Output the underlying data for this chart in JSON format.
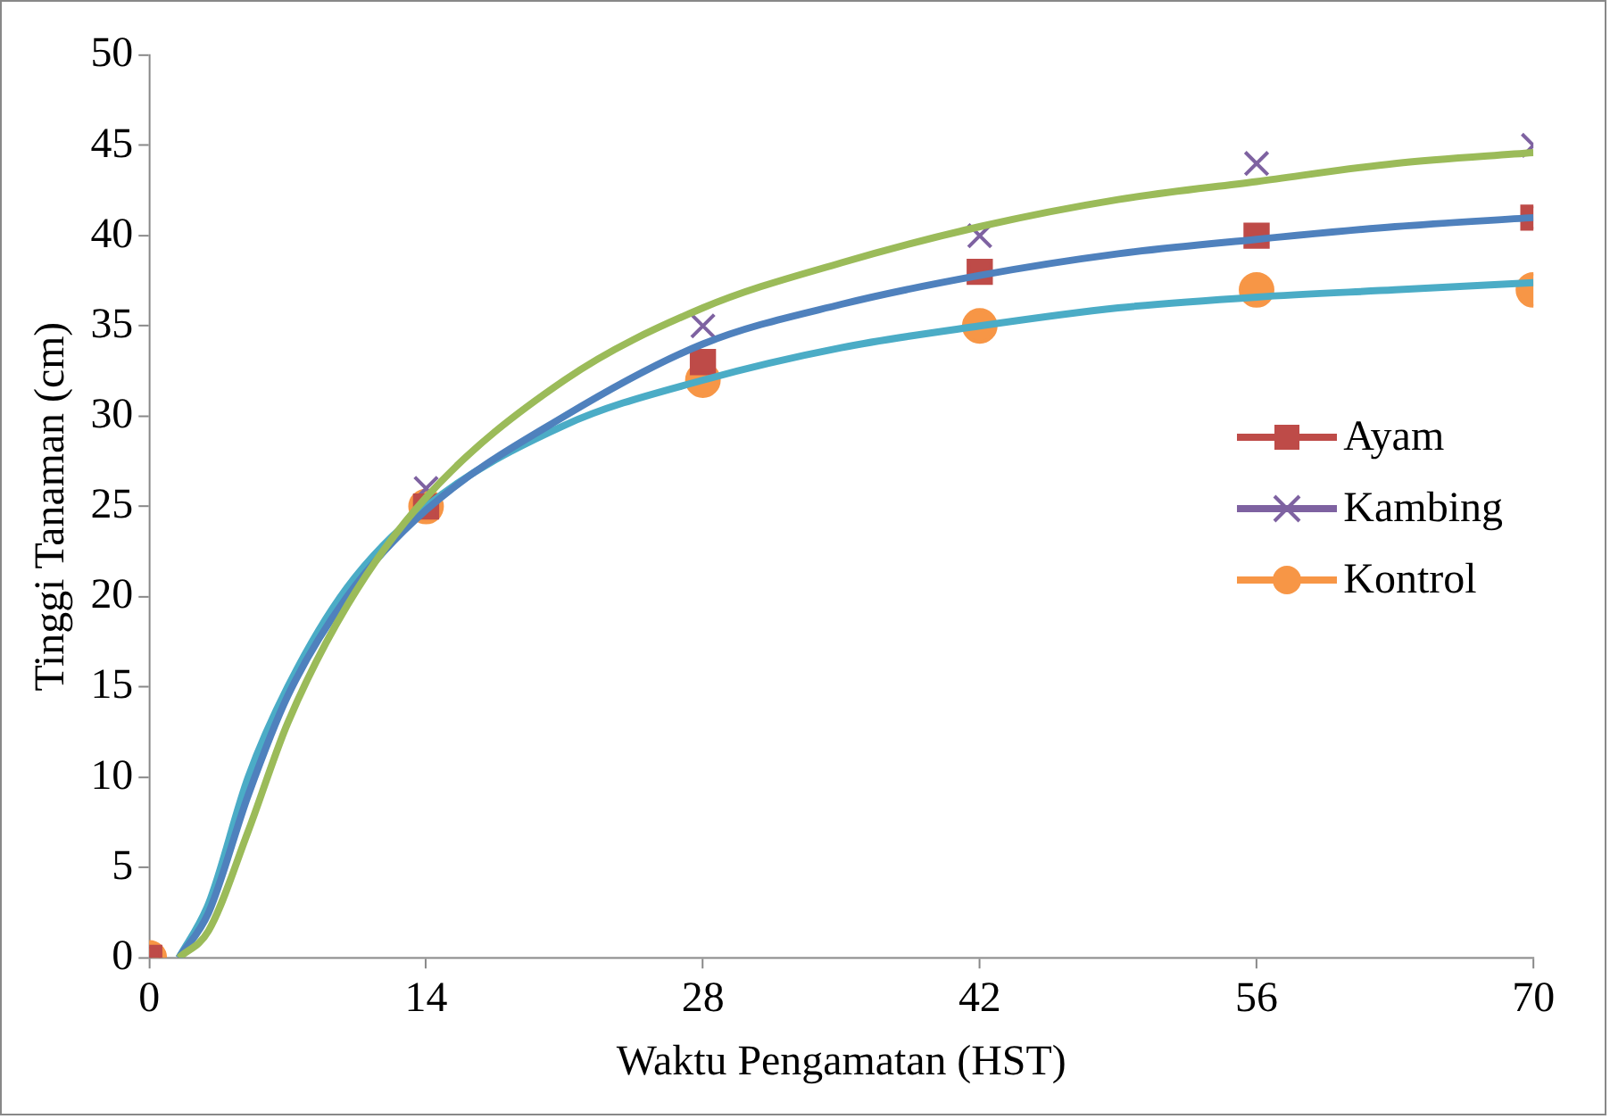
{
  "chart_data": {
    "type": "scatter",
    "xlabel": "Waktu Pengamatan (HST)",
    "ylabel": "Tinggi Tanaman (cm)",
    "x": [
      0,
      14,
      28,
      42,
      56,
      70
    ],
    "xlim": [
      0,
      70
    ],
    "xticks": [
      0,
      14,
      28,
      42,
      56,
      70
    ],
    "ylim": [
      0,
      50
    ],
    "yticks": [
      0,
      5,
      10,
      15,
      20,
      25,
      30,
      35,
      40,
      45,
      50
    ],
    "grid": false,
    "legend": "right",
    "series": [
      {
        "name": "Ayam",
        "type": "scatter",
        "marker": "square",
        "color": "#be4b48",
        "values": [
          0,
          25,
          33,
          38,
          40,
          41
        ]
      },
      {
        "name": "Kambing",
        "type": "scatter",
        "marker": "cross",
        "color": "#7e62a1",
        "values": [
          0,
          26,
          35,
          40,
          44,
          45
        ]
      },
      {
        "name": "Kontrol",
        "type": "scatter",
        "marker": "circle",
        "color": "#f79646",
        "values": [
          0,
          25,
          32,
          35,
          37,
          37
        ]
      },
      {
        "type": "line",
        "marker": "none",
        "color": "#9bbb59",
        "x": [
          1.5,
          3,
          5,
          7,
          10,
          14,
          21,
          28,
          35,
          42,
          49,
          56,
          63,
          70
        ],
        "values": [
          0,
          1.5,
          7,
          13,
          19.5,
          25.5,
          32,
          36,
          38.5,
          40.5,
          42,
          43,
          44,
          44.6
        ]
      },
      {
        "type": "line",
        "marker": "none",
        "color": "#4f81bd",
        "x": [
          1.5,
          3,
          5,
          7,
          10,
          14,
          21,
          28,
          35,
          42,
          49,
          56,
          63,
          70
        ],
        "values": [
          0,
          2.5,
          9,
          14.5,
          20,
          24.8,
          30,
          34,
          36.2,
          37.8,
          39,
          39.8,
          40.5,
          41
        ]
      },
      {
        "type": "line",
        "marker": "none",
        "color": "#4bacc6",
        "x": [
          1.5,
          3,
          5,
          7,
          10,
          14,
          21,
          28,
          35,
          42,
          49,
          56,
          63,
          70
        ],
        "values": [
          0,
          3,
          10,
          15,
          20.5,
          25,
          29.5,
          32,
          33.8,
          35,
          36,
          36.6,
          37,
          37.4
        ]
      }
    ]
  }
}
